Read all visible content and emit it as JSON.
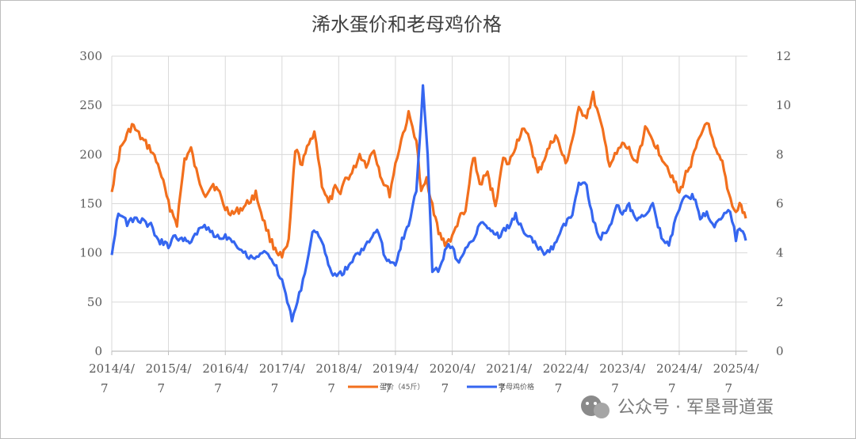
{
  "chart_data": {
    "type": "line",
    "title": "浠水蛋价和老母鸡价格",
    "x_ticks": [
      "2014/4/\n7",
      "2015/4/\n7",
      "2016/4/\n7",
      "2017/4/\n7",
      "2018/4/\n7",
      "2019/4/\n7",
      "2020/4/\n7",
      "2021/4/\n7",
      "2022/4/\n7",
      "2023/4/\n7",
      "2024/4/\n7",
      "2025/4/\n7"
    ],
    "x_range": [
      "2014-04-07",
      "2025-06-20"
    ],
    "y_left": {
      "min": 0,
      "max": 300,
      "ticks": [
        0,
        50,
        100,
        150,
        200,
        250,
        300
      ]
    },
    "y_right": {
      "min": 0,
      "max": 12,
      "ticks": [
        0,
        2,
        4,
        6,
        8,
        10,
        12
      ]
    },
    "grid": true,
    "legend_position": "bottom",
    "series": [
      {
        "name": "蛋价（45斤）",
        "axis": "left",
        "color": "#f26f1d",
        "x": [
          "2014-04-07",
          "2014-06-01",
          "2014-08-15",
          "2014-10-20",
          "2014-12-15",
          "2015-02-10",
          "2015-04-07",
          "2015-06-01",
          "2015-07-20",
          "2015-08-30",
          "2015-10-15",
          "2015-12-01",
          "2016-01-20",
          "2016-03-01",
          "2016-04-07",
          "2016-06-01",
          "2016-08-15",
          "2016-10-20",
          "2016-12-15",
          "2017-02-01",
          "2017-03-15",
          "2017-04-07",
          "2017-05-20",
          "2017-07-01",
          "2017-08-15",
          "2017-09-15",
          "2017-11-01",
          "2017-12-20",
          "2018-02-01",
          "2018-03-15",
          "2018-04-07",
          "2018-05-20",
          "2018-07-01",
          "2018-08-20",
          "2018-10-01",
          "2018-11-20",
          "2019-01-10",
          "2019-03-01",
          "2019-04-07",
          "2019-05-15",
          "2019-07-01",
          "2019-08-20",
          "2019-09-20",
          "2019-10-25",
          "2019-12-01",
          "2020-01-10",
          "2020-02-20",
          "2020-04-07",
          "2020-05-20",
          "2020-07-01",
          "2020-08-20",
          "2020-10-01",
          "2020-11-20",
          "2021-01-10",
          "2021-03-01",
          "2021-04-07",
          "2021-05-20",
          "2021-07-01",
          "2021-08-20",
          "2021-10-10",
          "2021-12-01",
          "2022-02-01",
          "2022-04-07",
          "2022-05-20",
          "2022-07-01",
          "2022-08-20",
          "2022-10-01",
          "2022-11-20",
          "2023-01-15",
          "2023-03-01",
          "2023-04-07",
          "2023-05-20",
          "2023-07-01",
          "2023-09-01",
          "2023-10-20",
          "2023-12-10",
          "2024-02-01",
          "2024-04-07",
          "2024-05-20",
          "2024-07-01",
          "2024-08-15",
          "2024-10-01",
          "2024-11-20",
          "2025-01-10",
          "2025-02-20",
          "2025-04-07",
          "2025-05-01",
          "2025-06-10"
        ],
        "values": [
          165,
          205,
          230,
          215,
          205,
          185,
          150,
          130,
          195,
          205,
          175,
          160,
          170,
          160,
          145,
          140,
          148,
          160,
          130,
          110,
          100,
          95,
          110,
          205,
          190,
          205,
          225,
          170,
          150,
          165,
          160,
          175,
          180,
          200,
          190,
          205,
          175,
          160,
          190,
          215,
          240,
          215,
          160,
          175,
          150,
          120,
          110,
          115,
          135,
          140,
          200,
          170,
          180,
          150,
          195,
          190,
          210,
          225,
          215,
          180,
          200,
          220,
          190,
          215,
          245,
          240,
          260,
          230,
          190,
          200,
          210,
          205,
          190,
          225,
          215,
          200,
          185,
          160,
          180,
          195,
          215,
          235,
          205,
          190,
          160,
          140,
          150,
          135
        ]
      },
      {
        "name": "老母鸡价格",
        "axis": "right",
        "color": "#3566f0",
        "x": [
          "2014-04-07",
          "2014-05-20",
          "2014-07-15",
          "2014-09-01",
          "2014-10-20",
          "2014-12-15",
          "2015-02-01",
          "2015-04-07",
          "2015-05-20",
          "2015-07-01",
          "2015-09-01",
          "2015-11-01",
          "2016-01-01",
          "2016-03-01",
          "2016-04-07",
          "2016-06-01",
          "2016-08-01",
          "2016-10-01",
          "2016-12-01",
          "2017-01-20",
          "2017-03-01",
          "2017-04-07",
          "2017-05-01",
          "2017-06-10",
          "2017-07-15",
          "2017-09-01",
          "2017-10-20",
          "2017-12-10",
          "2018-01-20",
          "2018-03-01",
          "2018-04-07",
          "2018-05-20",
          "2018-07-15",
          "2018-09-01",
          "2018-10-20",
          "2018-12-10",
          "2019-02-01",
          "2019-04-07",
          "2019-05-20",
          "2019-07-01",
          "2019-08-20",
          "2019-10-01",
          "2019-11-01",
          "2019-12-01",
          "2020-01-20",
          "2020-03-01",
          "2020-04-07",
          "2020-05-20",
          "2020-07-01",
          "2020-08-20",
          "2020-10-10",
          "2020-12-01",
          "2021-02-01",
          "2021-04-07",
          "2021-05-20",
          "2021-07-01",
          "2021-08-20",
          "2021-10-01",
          "2021-11-20",
          "2022-01-15",
          "2022-03-01",
          "2022-04-07",
          "2022-05-20",
          "2022-07-01",
          "2022-08-20",
          "2022-10-01",
          "2022-11-20",
          "2023-01-15",
          "2023-03-01",
          "2023-04-07",
          "2023-05-20",
          "2023-07-10",
          "2023-09-01",
          "2023-10-20",
          "2023-12-15",
          "2024-02-01",
          "2024-04-07",
          "2024-05-20",
          "2024-07-10",
          "2024-08-20",
          "2024-10-01",
          "2024-11-20",
          "2025-01-10",
          "2025-03-01",
          "2025-04-07",
          "2025-05-01",
          "2025-06-10"
        ],
        "values": [
          4.0,
          5.7,
          5.2,
          5.4,
          5.3,
          5.1,
          4.5,
          4.3,
          4.7,
          4.5,
          4.5,
          5.1,
          4.9,
          4.6,
          4.7,
          4.5,
          4.0,
          3.8,
          4.0,
          3.9,
          3.4,
          2.8,
          2.3,
          1.3,
          2.0,
          3.2,
          4.8,
          4.7,
          3.7,
          3.2,
          3.1,
          3.3,
          3.8,
          4.1,
          4.5,
          5.0,
          3.8,
          3.6,
          4.5,
          5.2,
          6.5,
          10.7,
          8.0,
          3.2,
          3.4,
          4.2,
          4.3,
          3.5,
          4.2,
          4.6,
          5.3,
          5.0,
          4.7,
          5.1,
          5.5,
          5.0,
          4.6,
          4.3,
          4.0,
          4.2,
          4.9,
          5.2,
          5.5,
          6.9,
          6.7,
          5.3,
          4.6,
          5.1,
          5.9,
          5.6,
          5.9,
          5.3,
          5.5,
          6.0,
          4.6,
          4.4,
          5.8,
          6.3,
          6.3,
          5.4,
          5.6,
          5.1,
          5.5,
          5.7,
          4.6,
          5.1,
          4.5
        ]
      }
    ]
  },
  "watermark": {
    "text": "公众号 · 军垦哥道蛋",
    "icon": "wechat-icon"
  }
}
